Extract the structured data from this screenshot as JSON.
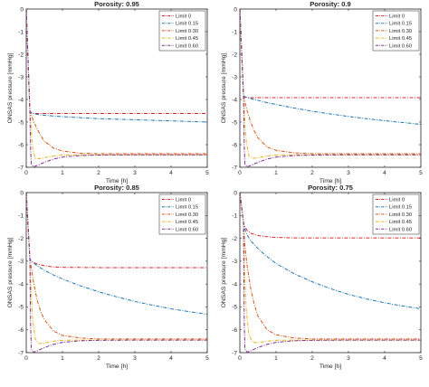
{
  "chart_data": [
    {
      "type": "line",
      "title": "Porosity: 0.95",
      "xlabel": "Time [h]",
      "ylabel": "ONSAS pressure [mmHg]",
      "xlim": [
        0,
        5
      ],
      "ylim": [
        -7,
        0
      ],
      "xticks": [
        "0",
        "1",
        "2",
        "3",
        "4",
        "5"
      ],
      "yticks": [
        "0",
        "-1",
        "-2",
        "-3",
        "-4",
        "-5",
        "-6",
        "-7"
      ],
      "grid": false,
      "legend_position": "top-right",
      "series": [
        {
          "name": "Limit 0",
          "color": "#d62728",
          "x": [
            0,
            0.1,
            0.12,
            0.14,
            0.2,
            0.3,
            0.5,
            1,
            2,
            3,
            4,
            5
          ],
          "y": [
            0,
            -4.5,
            -4.55,
            -4.6,
            -4.62,
            -4.62,
            -4.62,
            -4.62,
            -4.62,
            -4.62,
            -4.62,
            -4.62
          ]
        },
        {
          "name": "Limit 0.15",
          "color": "#1f77b4",
          "x": [
            0,
            0.1,
            0.12,
            0.14,
            0.2,
            0.3,
            0.5,
            1,
            2,
            3,
            4,
            5
          ],
          "y": [
            0,
            -4.5,
            -4.55,
            -4.58,
            -4.62,
            -4.66,
            -4.7,
            -4.76,
            -4.85,
            -4.9,
            -4.95,
            -5.0
          ]
        },
        {
          "name": "Limit 0.30",
          "color": "#d95319",
          "x": [
            0,
            0.1,
            0.12,
            0.14,
            0.2,
            0.3,
            0.4,
            0.5,
            0.75,
            1,
            1.5,
            2,
            3,
            4,
            5
          ],
          "y": [
            0,
            -4.5,
            -4.6,
            -4.7,
            -4.95,
            -5.3,
            -5.6,
            -5.85,
            -6.15,
            -6.28,
            -6.38,
            -6.4,
            -6.4,
            -6.4,
            -6.4
          ]
        },
        {
          "name": "Limit 0.45",
          "color": "#edb120",
          "x": [
            0,
            0.1,
            0.12,
            0.14,
            0.18,
            0.25,
            0.35,
            0.5,
            0.75,
            1,
            1.5,
            2,
            3,
            4,
            5
          ],
          "y": [
            0,
            -4.5,
            -4.9,
            -5.4,
            -6.2,
            -6.6,
            -6.62,
            -6.58,
            -6.5,
            -6.46,
            -6.45,
            -6.45,
            -6.45,
            -6.45,
            -6.45
          ]
        },
        {
          "name": "Limit 0.60",
          "color": "#7e2f8e",
          "x": [
            0,
            0.1,
            0.12,
            0.14,
            0.2,
            0.3,
            0.5,
            0.75,
            1,
            1.5,
            2,
            3,
            4,
            5
          ],
          "y": [
            0,
            -4.5,
            -6.2,
            -6.85,
            -6.98,
            -6.92,
            -6.78,
            -6.64,
            -6.55,
            -6.48,
            -6.46,
            -6.45,
            -6.45,
            -6.45
          ]
        }
      ]
    },
    {
      "type": "line",
      "title": "Porosity: 0.9",
      "xlabel": "Time [h]",
      "ylabel": "ONSAS pressure [mmHg]",
      "xlim": [
        0,
        5
      ],
      "ylim": [
        -7,
        0
      ],
      "xticks": [
        "0",
        "1",
        "2",
        "3",
        "4",
        "5"
      ],
      "yticks": [
        "0",
        "-1",
        "-2",
        "-3",
        "-4",
        "-5",
        "-6",
        "-7"
      ],
      "grid": false,
      "legend_position": "top-right",
      "series": [
        {
          "name": "Limit 0",
          "color": "#d62728",
          "x": [
            0,
            0.1,
            0.12,
            0.14,
            0.2,
            0.3,
            0.5,
            1,
            2,
            3,
            4,
            5
          ],
          "y": [
            0,
            -3.8,
            -3.85,
            -3.9,
            -3.92,
            -3.92,
            -3.92,
            -3.92,
            -3.92,
            -3.92,
            -3.92,
            -3.92
          ]
        },
        {
          "name": "Limit 0.15",
          "color": "#1f77b4",
          "x": [
            0,
            0.1,
            0.12,
            0.14,
            0.2,
            0.3,
            0.5,
            0.75,
            1,
            1.5,
            2,
            2.5,
            3,
            3.5,
            4,
            4.5,
            5
          ],
          "y": [
            0,
            -3.8,
            -3.85,
            -3.88,
            -3.92,
            -3.96,
            -4.04,
            -4.14,
            -4.22,
            -4.38,
            -4.52,
            -4.64,
            -4.75,
            -4.85,
            -4.94,
            -5.02,
            -5.1
          ]
        },
        {
          "name": "Limit 0.30",
          "color": "#d95319",
          "x": [
            0,
            0.1,
            0.12,
            0.14,
            0.2,
            0.3,
            0.4,
            0.5,
            0.75,
            1,
            1.5,
            2,
            3,
            4,
            5
          ],
          "y": [
            0,
            -3.8,
            -3.95,
            -4.1,
            -4.5,
            -5.0,
            -5.4,
            -5.7,
            -6.1,
            -6.25,
            -6.36,
            -6.4,
            -6.4,
            -6.4,
            -6.4
          ]
        },
        {
          "name": "Limit 0.45",
          "color": "#edb120",
          "x": [
            0,
            0.1,
            0.12,
            0.14,
            0.18,
            0.25,
            0.35,
            0.5,
            0.75,
            1,
            1.5,
            2,
            3,
            4,
            5
          ],
          "y": [
            0,
            -3.8,
            -4.4,
            -5.0,
            -5.9,
            -6.5,
            -6.6,
            -6.58,
            -6.5,
            -6.46,
            -6.45,
            -6.45,
            -6.45,
            -6.45,
            -6.45
          ]
        },
        {
          "name": "Limit 0.60",
          "color": "#7e2f8e",
          "x": [
            0,
            0.1,
            0.12,
            0.14,
            0.2,
            0.3,
            0.5,
            0.75,
            1,
            1.5,
            2,
            3,
            4,
            5
          ],
          "y": [
            0,
            -3.8,
            -6.0,
            -6.85,
            -6.98,
            -6.92,
            -6.78,
            -6.64,
            -6.55,
            -6.48,
            -6.46,
            -6.45,
            -6.45,
            -6.45
          ]
        }
      ]
    },
    {
      "type": "line",
      "title": "Porosity: 0.85",
      "xlabel": "Time [h]",
      "ylabel": "ONSAS pressure [mmHg]",
      "xlim": [
        0,
        5
      ],
      "ylim": [
        -7,
        0
      ],
      "xticks": [
        "0",
        "1",
        "2",
        "3",
        "4",
        "5"
      ],
      "yticks": [
        "0",
        "-1",
        "-2",
        "-3",
        "-4",
        "-5",
        "-6",
        "-7"
      ],
      "grid": false,
      "legend_position": "top-right",
      "series": [
        {
          "name": "Limit 0",
          "color": "#d62728",
          "x": [
            0,
            0.1,
            0.12,
            0.14,
            0.2,
            0.3,
            0.5,
            0.75,
            1,
            2,
            3,
            4,
            5
          ],
          "y": [
            0,
            -2.9,
            -2.95,
            -3.0,
            -3.06,
            -3.12,
            -3.2,
            -3.25,
            -3.27,
            -3.28,
            -3.28,
            -3.28,
            -3.28
          ]
        },
        {
          "name": "Limit 0.15",
          "color": "#1f77b4",
          "x": [
            0,
            0.1,
            0.12,
            0.14,
            0.2,
            0.3,
            0.5,
            0.75,
            1,
            1.5,
            2,
            2.5,
            3,
            3.5,
            4,
            4.5,
            5
          ],
          "y": [
            0,
            -2.9,
            -2.95,
            -3.0,
            -3.08,
            -3.2,
            -3.4,
            -3.6,
            -3.78,
            -4.08,
            -4.34,
            -4.56,
            -4.76,
            -4.93,
            -5.08,
            -5.21,
            -5.32
          ]
        },
        {
          "name": "Limit 0.30",
          "color": "#d95319",
          "x": [
            0,
            0.1,
            0.12,
            0.14,
            0.2,
            0.3,
            0.4,
            0.5,
            0.75,
            1,
            1.5,
            2,
            3,
            4,
            5
          ],
          "y": [
            0,
            -2.9,
            -3.1,
            -3.3,
            -3.9,
            -4.7,
            -5.2,
            -5.55,
            -6.05,
            -6.25,
            -6.36,
            -6.4,
            -6.4,
            -6.4,
            -6.4
          ]
        },
        {
          "name": "Limit 0.45",
          "color": "#edb120",
          "x": [
            0,
            0.1,
            0.12,
            0.14,
            0.18,
            0.25,
            0.35,
            0.5,
            0.75,
            1,
            1.5,
            2,
            3,
            4,
            5
          ],
          "y": [
            0,
            -2.9,
            -3.7,
            -4.5,
            -5.6,
            -6.4,
            -6.6,
            -6.58,
            -6.5,
            -6.46,
            -6.45,
            -6.45,
            -6.45,
            -6.45,
            -6.45
          ]
        },
        {
          "name": "Limit 0.60",
          "color": "#7e2f8e",
          "x": [
            0,
            0.1,
            0.12,
            0.14,
            0.2,
            0.3,
            0.5,
            0.75,
            1,
            1.5,
            2,
            3,
            4,
            5
          ],
          "y": [
            0,
            -2.9,
            -5.8,
            -6.85,
            -6.98,
            -6.92,
            -6.78,
            -6.64,
            -6.55,
            -6.48,
            -6.46,
            -6.45,
            -6.45,
            -6.45
          ]
        }
      ]
    },
    {
      "type": "line",
      "title": "Porosity: 0.75",
      "xlabel": "Time [h]",
      "ylabel": "ONSAS pressure [mmHg]",
      "xlim": [
        0,
        5
      ],
      "ylim": [
        -7,
        0
      ],
      "xticks": [
        "0",
        "1",
        "2",
        "3",
        "4",
        "5"
      ],
      "yticks": [
        "0",
        "-1",
        "-2",
        "-3",
        "-4",
        "-5",
        "-6",
        "-7"
      ],
      "grid": false,
      "legend_position": "top-right",
      "series": [
        {
          "name": "Limit 0",
          "color": "#d62728",
          "x": [
            0,
            0.1,
            0.12,
            0.14,
            0.2,
            0.3,
            0.5,
            0.75,
            1,
            1.5,
            2,
            3,
            4,
            5
          ],
          "y": [
            0,
            -1.3,
            -1.4,
            -1.5,
            -1.65,
            -1.78,
            -1.88,
            -1.93,
            -1.96,
            -1.98,
            -1.98,
            -1.98,
            -1.98,
            -1.98
          ]
        },
        {
          "name": "Limit 0.15",
          "color": "#1f77b4",
          "x": [
            0,
            0.1,
            0.12,
            0.14,
            0.2,
            0.3,
            0.5,
            0.75,
            1,
            1.5,
            2,
            2.5,
            3,
            3.5,
            4,
            4.5,
            5
          ],
          "y": [
            0,
            -1.3,
            -1.45,
            -1.6,
            -1.85,
            -2.1,
            -2.45,
            -2.8,
            -3.1,
            -3.55,
            -3.9,
            -4.2,
            -4.45,
            -4.65,
            -4.82,
            -4.96,
            -5.08
          ]
        },
        {
          "name": "Limit 0.30",
          "color": "#d95319",
          "x": [
            0,
            0.1,
            0.12,
            0.14,
            0.2,
            0.3,
            0.4,
            0.5,
            0.75,
            1,
            1.5,
            2,
            3,
            4,
            5
          ],
          "y": [
            0,
            -1.3,
            -1.8,
            -2.3,
            -3.2,
            -4.2,
            -4.9,
            -5.4,
            -6.0,
            -6.22,
            -6.36,
            -6.4,
            -6.4,
            -6.4,
            -6.4
          ]
        },
        {
          "name": "Limit 0.45",
          "color": "#edb120",
          "x": [
            0,
            0.1,
            0.12,
            0.14,
            0.18,
            0.25,
            0.35,
            0.5,
            0.75,
            1,
            1.5,
            2,
            3,
            4,
            5
          ],
          "y": [
            0,
            -1.3,
            -2.6,
            -3.8,
            -5.2,
            -6.2,
            -6.55,
            -6.56,
            -6.5,
            -6.46,
            -6.45,
            -6.45,
            -6.45,
            -6.45,
            -6.45
          ]
        },
        {
          "name": "Limit 0.60",
          "color": "#7e2f8e",
          "x": [
            0,
            0.1,
            0.12,
            0.14,
            0.2,
            0.3,
            0.5,
            0.75,
            1,
            1.5,
            2,
            3,
            4,
            5
          ],
          "y": [
            0,
            -1.3,
            -5.5,
            -6.85,
            -6.98,
            -6.92,
            -6.78,
            -6.64,
            -6.55,
            -6.48,
            -6.46,
            -6.45,
            -6.45,
            -6.45
          ]
        }
      ]
    }
  ]
}
